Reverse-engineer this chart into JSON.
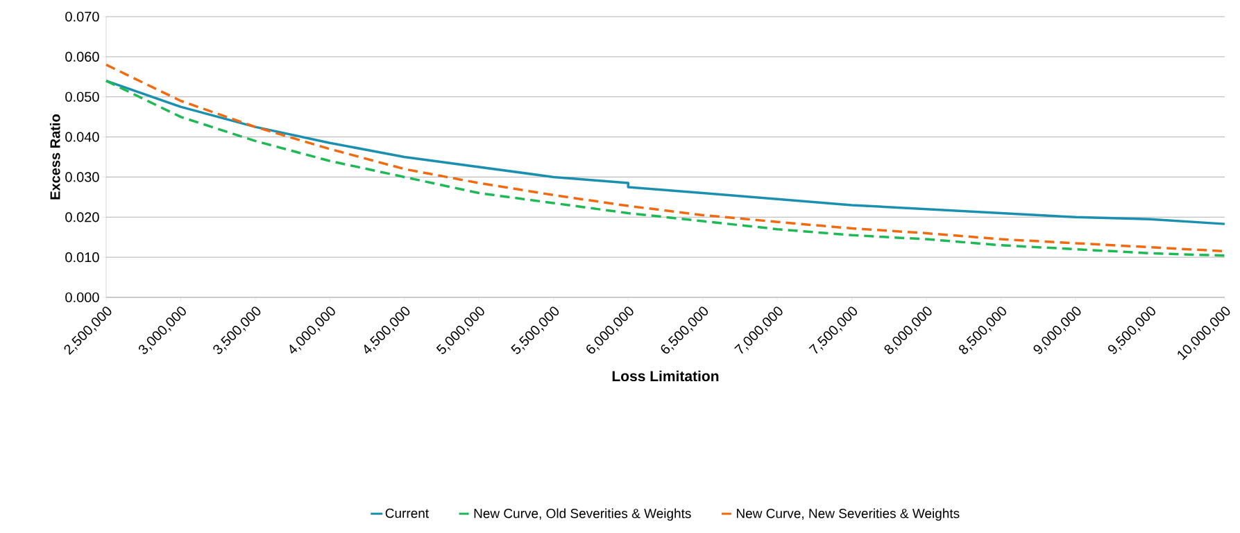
{
  "chart_data": {
    "type": "line",
    "xlabel": "Loss Limitation",
    "ylabel": "Excess Ratio",
    "xlim": [
      2500000,
      10000000
    ],
    "xticks": [
      {
        "value": 2500000,
        "label": "2,500,000"
      },
      {
        "value": 3000000,
        "label": "3,000,000"
      },
      {
        "value": 3500000,
        "label": "3,500,000"
      },
      {
        "value": 4000000,
        "label": "4,000,000"
      },
      {
        "value": 4500000,
        "label": "4,500,000"
      },
      {
        "value": 5000000,
        "label": "5,000,000"
      },
      {
        "value": 5500000,
        "label": "5,500,000"
      },
      {
        "value": 6000000,
        "label": "6,000,000"
      },
      {
        "value": 6500000,
        "label": "6,500,000"
      },
      {
        "value": 7000000,
        "label": "7,000,000"
      },
      {
        "value": 7500000,
        "label": "7,500,000"
      },
      {
        "value": 8000000,
        "label": "8,000,000"
      },
      {
        "value": 8500000,
        "label": "8,500,000"
      },
      {
        "value": 9000000,
        "label": "9,000,000"
      },
      {
        "value": 9500000,
        "label": "9,500,000"
      },
      {
        "value": 10000000,
        "label": "10,000,000"
      }
    ],
    "ylim": [
      0,
      0.07
    ],
    "yticks": [
      {
        "value": 0,
        "label": "0.000"
      },
      {
        "value": 0.01,
        "label": "0.010"
      },
      {
        "value": 0.02,
        "label": "0.020"
      },
      {
        "value": 0.03,
        "label": "0.030"
      },
      {
        "value": 0.04,
        "label": "0.040"
      },
      {
        "value": 0.05,
        "label": "0.050"
      },
      {
        "value": 0.06,
        "label": "0.060"
      },
      {
        "value": 0.07,
        "label": "0.070"
      }
    ],
    "grid": "y",
    "legend": "bottom",
    "marker": "none",
    "series": [
      {
        "name": "Current",
        "color": "#1b8fb0",
        "line_style": "solid",
        "x": [
          2500000,
          3000000,
          3500000,
          4000000,
          4500000,
          5000000,
          5500000,
          6000000,
          6000000,
          6500000,
          7000000,
          7500000,
          8000000,
          8500000,
          9000000,
          9500000,
          10000000
        ],
        "values": [
          0.054,
          0.0475,
          0.0425,
          0.0385,
          0.035,
          0.0325,
          0.03,
          0.0285,
          0.0275,
          0.026,
          0.0245,
          0.023,
          0.022,
          0.021,
          0.02,
          0.0195,
          0.0183
        ]
      },
      {
        "name": "New Curve, Old Severities & Weights",
        "color": "#1db954",
        "line_style": "dashed",
        "x": [
          2500000,
          3000000,
          3500000,
          4000000,
          4500000,
          5000000,
          5500000,
          6000000,
          6500000,
          7000000,
          7500000,
          8000000,
          8500000,
          9000000,
          9500000,
          10000000
        ],
        "values": [
          0.054,
          0.045,
          0.039,
          0.034,
          0.03,
          0.026,
          0.0235,
          0.021,
          0.019,
          0.017,
          0.0155,
          0.0145,
          0.013,
          0.012,
          0.011,
          0.0104
        ]
      },
      {
        "name": "New Curve, New Severities & Weights",
        "color": "#f26a10",
        "line_style": "dashed",
        "x": [
          2500000,
          3000000,
          3500000,
          4000000,
          4500000,
          5000000,
          5500000,
          6000000,
          6500000,
          7000000,
          7500000,
          8000000,
          8500000,
          9000000,
          9500000,
          10000000
        ],
        "values": [
          0.058,
          0.049,
          0.0425,
          0.037,
          0.032,
          0.0285,
          0.0255,
          0.0228,
          0.0205,
          0.0188,
          0.0172,
          0.016,
          0.0145,
          0.0135,
          0.0125,
          0.0115
        ]
      }
    ]
  }
}
